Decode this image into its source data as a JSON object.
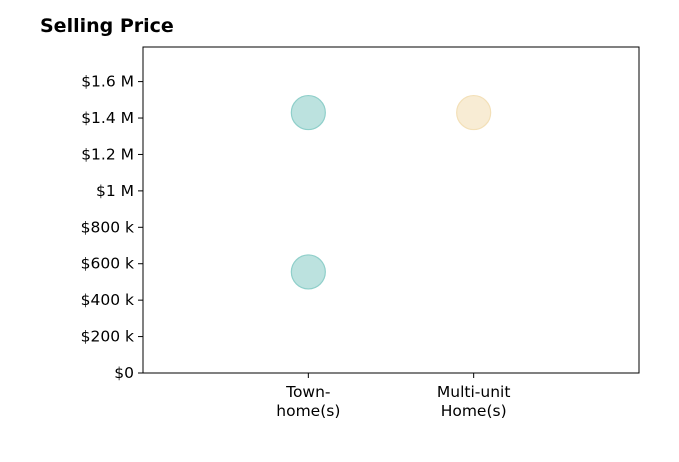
{
  "chart_data": {
    "type": "scatter",
    "title": "Selling Price",
    "xlabel": "",
    "ylabel": "",
    "categories": [
      [
        "Town-",
        "home(s)"
      ],
      [
        "Multi-unit",
        "Home(s)"
      ]
    ],
    "y_ticks": [
      {
        "value": 0,
        "label": "$0"
      },
      {
        "value": 200000,
        "label": "$200 k"
      },
      {
        "value": 400000,
        "label": "$400 k"
      },
      {
        "value": 600000,
        "label": "$600 k"
      },
      {
        "value": 800000,
        "label": "$800 k"
      },
      {
        "value": 1000000,
        "label": "$1 M"
      },
      {
        "value": 1200000,
        "label": "$1.2 M"
      },
      {
        "value": 1400000,
        "label": "$1.4 M"
      },
      {
        "value": 1600000,
        "label": "$1.6 M"
      }
    ],
    "ylim": [
      0,
      1790000
    ],
    "x_range": [
      -1,
      2
    ],
    "grid": false,
    "points": [
      {
        "category": 0,
        "y": 1430000,
        "color": "#8fcfca"
      },
      {
        "category": 0,
        "y": 555000,
        "color": "#8fcfca"
      },
      {
        "category": 1,
        "y": 1430000,
        "color": "#f3e0b8"
      }
    ],
    "marker_opacity": 0.6
  }
}
